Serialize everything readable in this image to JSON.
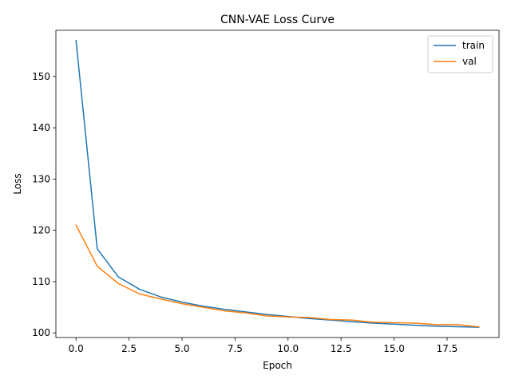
{
  "chart_data": {
    "type": "line",
    "title": "CNN-VAE Loss Curve",
    "xlabel": "Epoch",
    "ylabel": "Loss",
    "xlim": [
      -0.95,
      19.95
    ],
    "ylim": [
      99.1,
      159.0
    ],
    "xticks": [
      0,
      2.5,
      5,
      7.5,
      10,
      12.5,
      15,
      17.5
    ],
    "xtick_labels": [
      "0.0",
      "2.5",
      "5.0",
      "7.5",
      "10.0",
      "12.5",
      "15.0",
      "17.5"
    ],
    "yticks": [
      100,
      110,
      120,
      130,
      140,
      150
    ],
    "ytick_labels": [
      "100",
      "110",
      "120",
      "130",
      "140",
      "150"
    ],
    "grid": false,
    "legend_position": "top-right",
    "x": [
      0,
      1,
      2,
      3,
      4,
      5,
      6,
      7,
      8,
      9,
      10,
      11,
      12,
      13,
      14,
      15,
      16,
      17,
      18,
      19
    ],
    "series": [
      {
        "name": "train",
        "color": "#1f77b4",
        "values": [
          157.0,
          116.4,
          110.9,
          108.5,
          107.0,
          106.0,
          105.2,
          104.6,
          104.1,
          103.6,
          103.2,
          102.8,
          102.5,
          102.2,
          101.9,
          101.7,
          101.5,
          101.3,
          101.2,
          101.1
        ]
      },
      {
        "name": "val",
        "color": "#ff7f0e",
        "values": [
          121.0,
          113.0,
          109.6,
          107.6,
          106.6,
          105.7,
          105.0,
          104.3,
          103.9,
          103.3,
          103.1,
          103.0,
          102.6,
          102.5,
          102.1,
          102.0,
          101.9,
          101.6,
          101.6,
          101.2
        ]
      }
    ]
  }
}
